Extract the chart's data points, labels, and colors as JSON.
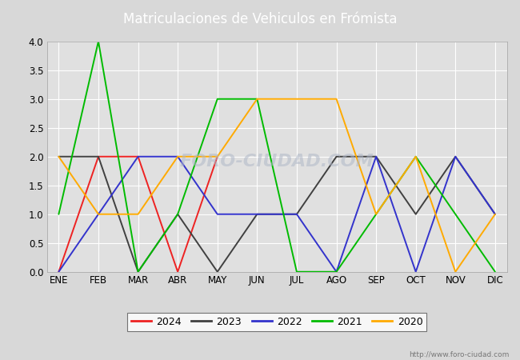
{
  "title": "Matriculaciones de Vehiculos en Frómista",
  "months": [
    "ENE",
    "FEB",
    "MAR",
    "ABR",
    "MAY",
    "JUN",
    "JUL",
    "AGO",
    "SEP",
    "OCT",
    "NOV",
    "DIC"
  ],
  "series": {
    "2024": {
      "values": [
        0,
        2,
        2,
        0,
        2,
        null,
        null,
        null,
        null,
        null,
        null,
        null
      ],
      "color": "#ee2222",
      "label": "2024"
    },
    "2023": {
      "values": [
        2,
        2,
        0,
        1,
        0,
        1,
        1,
        2,
        2,
        1,
        2,
        1
      ],
      "color": "#404040",
      "label": "2023"
    },
    "2022": {
      "values": [
        0,
        1,
        2,
        2,
        1,
        1,
        1,
        0,
        2,
        0,
        2,
        1
      ],
      "color": "#3333cc",
      "label": "2022"
    },
    "2021": {
      "values": [
        1,
        4,
        0,
        1,
        3,
        3,
        0,
        0,
        1,
        2,
        1,
        0
      ],
      "color": "#00bb00",
      "label": "2021"
    },
    "2020": {
      "values": [
        2,
        1,
        1,
        2,
        2,
        3,
        3,
        3,
        1,
        2,
        0,
        1
      ],
      "color": "#ffaa00",
      "label": "2020"
    }
  },
  "ylim": [
    0,
    4.0
  ],
  "yticks": [
    0.0,
    0.5,
    1.0,
    1.5,
    2.0,
    2.5,
    3.0,
    3.5,
    4.0
  ],
  "header_bg_color": "#4a7aab",
  "plot_bg_color": "#e0e0e0",
  "outer_bg_color": "#d8d8d8",
  "title_color": "#ffffff",
  "title_fontsize": 12,
  "grid_color": "#ffffff",
  "watermark_plot": "FORO-CIUDAD.COM",
  "watermark_url": "http://www.foro-ciudad.com"
}
